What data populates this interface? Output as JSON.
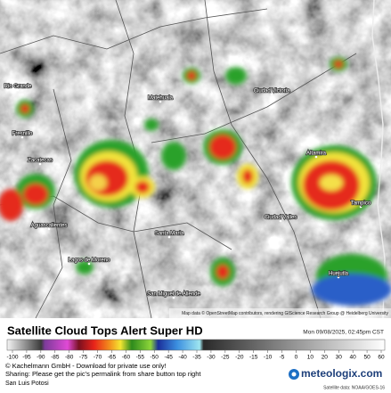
{
  "map": {
    "places": [
      "Rio Grande",
      "Fresnillo",
      "Zacatecas",
      "Matehuala",
      "Ciudad Victoria",
      "Aguascalientes",
      "Lagos de Moreno",
      "Santa Maria",
      "Ciudad Valles",
      "Altamira",
      "Tampico",
      "Huejutla",
      "San Miguel de Allende"
    ],
    "attribution": "Map data © OpenStreetMap contributors, rendering GIScience Research Group @ Heidelberg University"
  },
  "legend": {
    "title": "Satellite Cloud Tops Alert Super HD",
    "timestamp": "Mon 09/08/2025, 02:45pm CST",
    "ticks": [
      -100,
      -95,
      -90,
      -85,
      -80,
      -75,
      -70,
      -65,
      -60,
      -55,
      -50,
      -45,
      -40,
      -35,
      -30,
      -25,
      -20,
      -15,
      -10,
      -5,
      0,
      10,
      20,
      30,
      40,
      50,
      60
    ]
  },
  "footer": {
    "copyright": "© Kachelmann GmbH - Download for private use only!",
    "sharing": "Sharing: Please get the pic's permalink from share button top right",
    "location": "San Luis Potosi",
    "logo": "meteologix.com",
    "source": "Satellite data: NOAA/GOES-16"
  }
}
